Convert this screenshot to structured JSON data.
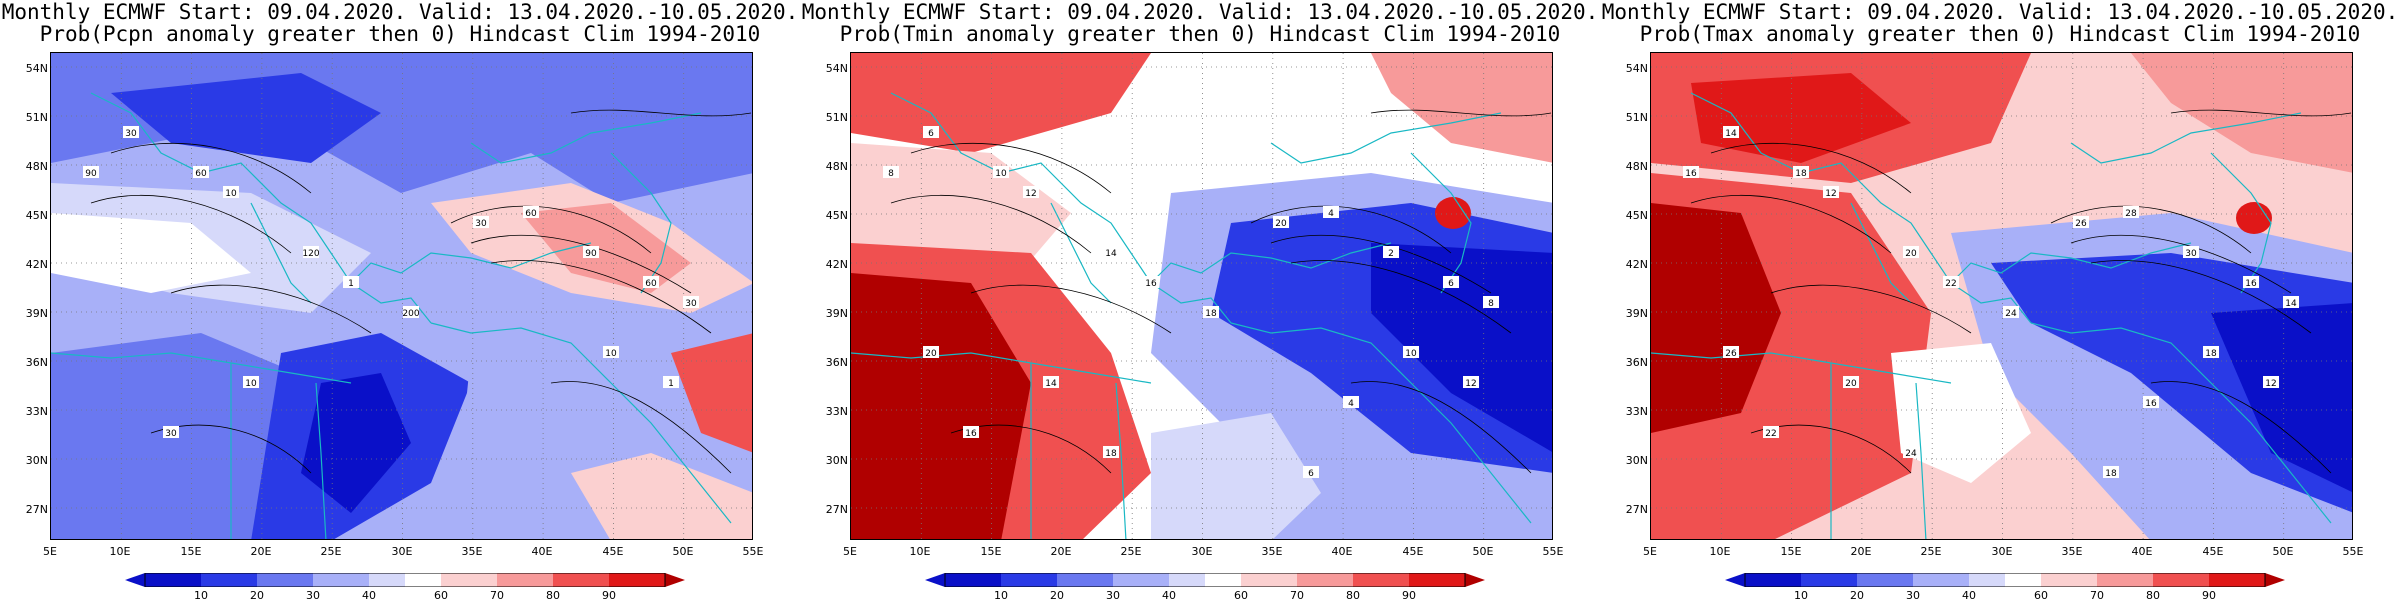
{
  "panels": [
    {
      "title_line1": "Monthly ECMWF Start: 09.04.2020. Valid: 13.04.2020.-10.05.2020.",
      "title_line2": "Prob(Pcpn anomaly greater then 0) Hindcast Clim 1994-2010",
      "variable": "Pcpn",
      "contour_labels": [
        "30",
        "90",
        "60",
        "10",
        "120",
        "1",
        "200",
        "30",
        "60",
        "90",
        "60",
        "30",
        "10",
        "1",
        "10",
        "30"
      ]
    },
    {
      "title_line1": "Monthly ECMWF Start: 09.04.2020. Valid: 13.04.2020.-10.05.2020.",
      "title_line2": "Prob(Tmin anomaly greater then 0) Hindcast Clim 1994-2010",
      "variable": "Tmin",
      "contour_labels": [
        "6",
        "8",
        "10",
        "12",
        "14",
        "16",
        "18",
        "20",
        "4",
        "2",
        "6",
        "8",
        "10",
        "12",
        "14",
        "16",
        "18",
        "20",
        "4",
        "6"
      ]
    },
    {
      "title_line1": "Monthly ECMWF Start: 09.04.2020. Valid: 13.04.2020.-10.05.2020.",
      "title_line2": "Prob(Tmax anomaly greater then 0) Hindcast Clim 1994-2010",
      "variable": "Tmax",
      "contour_labels": [
        "14",
        "16",
        "18",
        "12",
        "20",
        "22",
        "24",
        "26",
        "28",
        "30",
        "16",
        "14",
        "18",
        "12",
        "20",
        "22",
        "24",
        "26",
        "16",
        "18"
      ]
    }
  ],
  "lat_labels": [
    "54N",
    "51N",
    "48N",
    "45N",
    "42N",
    "39N",
    "36N",
    "33N",
    "30N",
    "27N"
  ],
  "lon_labels": [
    "5E",
    "10E",
    "15E",
    "20E",
    "25E",
    "30E",
    "35E",
    "40E",
    "45E",
    "50E",
    "55E"
  ],
  "colorbar": {
    "ticks": [
      "10",
      "20",
      "30",
      "40",
      "60",
      "70",
      "80",
      "90"
    ],
    "colors": [
      "#0a10c8",
      "#2a3ae6",
      "#6a78f0",
      "#a8b0f8",
      "#d6d9fa",
      "#ffffff",
      "#fbd0d0",
      "#f79a9a",
      "#f05050",
      "#e01818",
      "#b00000"
    ]
  }
}
